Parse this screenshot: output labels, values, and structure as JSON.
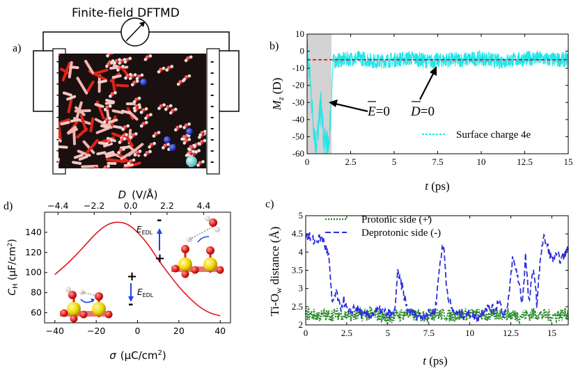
{
  "panel_labels": {
    "a": "a)",
    "b": "b)",
    "c": "c)",
    "d": "d)"
  },
  "panel_a": {
    "title": "Finite-field DFTMD",
    "left_plate_sign": "+",
    "right_plate_sign": "-",
    "colors": {
      "plate": "#ffffff",
      "wire": "#000000",
      "slab_bg": "#1a1010",
      "ti": "#f4b6b0",
      "o": "#e2231a",
      "h": "#f0f0f0",
      "n": "#1f2fd0",
      "ion": "#7fd3d6"
    }
  },
  "panel_b": {
    "annotation_e": "E=0",
    "annotation_d": "D=0",
    "annotation_e_symbol": "E",
    "annotation_d_symbol": "D",
    "annotation_eq": "=0"
  },
  "panel_d": {
    "e_edl_label": "E",
    "e_edl_sub": "EDL",
    "plus": "+",
    "minus": "-"
  },
  "chart_data": [
    {
      "id": "b",
      "type": "line",
      "xlabel": "t (ps)",
      "ylabel": "M_z (D)",
      "ylabel_main": "M",
      "ylabel_sub": "z",
      "ylabel_unit": " (D)",
      "xlim": [
        0,
        15
      ],
      "ylim": [
        -60,
        10
      ],
      "xticks": [
        0,
        2.5,
        5,
        7.5,
        10,
        12.5,
        15
      ],
      "xtick_labels": [
        "0",
        "2.5",
        "5",
        "7.5",
        "10",
        "12.5",
        "15"
      ],
      "yticks": [
        10,
        0,
        -10,
        -20,
        -30,
        -40,
        -50,
        -60
      ],
      "ytick_labels": [
        "10",
        "0",
        "-10",
        "-20",
        "-30",
        "-40",
        "-50",
        "-60"
      ],
      "shaded_region": [
        0,
        1.4
      ],
      "reference_line": -5,
      "legend": "Surface charge 4e",
      "colors": {
        "series": "#22e5e8",
        "reference": "#e0141c",
        "shade": "#d3d3d3"
      },
      "series": [
        {
          "name": "Surface charge 4e",
          "x": [
            0,
            0.1,
            0.2,
            0.3,
            0.4,
            0.5,
            0.6,
            0.7,
            0.8,
            0.9,
            1.0,
            1.1,
            1.2,
            1.3,
            1.4,
            1.5,
            2,
            3,
            4,
            5,
            6,
            7,
            8,
            9,
            10,
            11,
            12,
            13,
            14,
            15
          ],
          "y": [
            5,
            -10,
            -20,
            -35,
            -45,
            -55,
            -50,
            -40,
            -30,
            -45,
            -55,
            -50,
            -58,
            -45,
            -25,
            -6,
            -5,
            -4,
            -6,
            -5,
            -4,
            -6,
            -5,
            -5,
            -4,
            -6,
            -5,
            -4,
            -5,
            -5
          ]
        }
      ]
    },
    {
      "id": "c",
      "type": "line",
      "xlabel": "t (ps)",
      "ylabel": "Ti-O_w distance (Å)",
      "ylabel_main": "Ti-O",
      "ylabel_sub": "w",
      "ylabel_unit": " distance (Å)",
      "xlim": [
        0,
        16
      ],
      "ylim": [
        2,
        5
      ],
      "xticks": [
        0,
        2.5,
        5,
        7.5,
        10,
        12.5,
        15
      ],
      "xtick_labels": [
        "0",
        "2.5",
        "5",
        "7.5",
        "10",
        "12.5",
        "15"
      ],
      "yticks": [
        2,
        2.5,
        3,
        3.5,
        4,
        4.5,
        5
      ],
      "ytick_labels": [
        "2",
        "2.5",
        "3",
        "3.5",
        "4",
        "4.5",
        "5"
      ],
      "colors": {
        "protonic": "#2a8a2a",
        "deprotonic": "#2b2be0"
      },
      "series": [
        {
          "name": "Protonic side (+)",
          "style": "dotted",
          "x": [
            0,
            1,
            2,
            3,
            4,
            5,
            6,
            7,
            8,
            9,
            10,
            11,
            12,
            13,
            14,
            15,
            16
          ],
          "y": [
            2.3,
            2.25,
            2.3,
            2.25,
            2.3,
            2.2,
            2.3,
            2.25,
            2.3,
            2.25,
            2.3,
            2.25,
            2.3,
            2.25,
            2.3,
            2.25,
            2.3
          ]
        },
        {
          "name": "Deprotonic side (-)",
          "style": "dashed",
          "x": [
            0,
            0.5,
            1.0,
            1.4,
            1.6,
            1.9,
            2.1,
            2.3,
            2.6,
            3.0,
            3.5,
            4.0,
            4.5,
            5.0,
            5.4,
            5.6,
            5.9,
            6.2,
            6.6,
            7.0,
            7.5,
            7.9,
            8.2,
            8.4,
            8.6,
            8.9,
            9.3,
            10.0,
            10.5,
            11.0,
            11.5,
            11.8,
            12.0,
            12.3,
            12.6,
            12.9,
            13.2,
            13.4,
            13.6,
            13.9,
            14.1,
            14.3,
            14.5,
            14.7,
            15.0,
            15.3,
            15.6,
            16.0
          ],
          "y": [
            4.5,
            4.3,
            4.4,
            3.9,
            2.6,
            2.9,
            2.4,
            2.7,
            2.3,
            2.5,
            2.25,
            2.3,
            2.4,
            2.3,
            2.3,
            3.4,
            3.0,
            2.4,
            2.3,
            2.25,
            2.3,
            2.4,
            3.8,
            4.2,
            3.0,
            2.4,
            2.3,
            2.3,
            2.2,
            2.5,
            2.4,
            2.7,
            2.3,
            2.4,
            3.8,
            3.4,
            2.6,
            3.9,
            2.6,
            3.6,
            2.5,
            3.9,
            4.4,
            4.2,
            3.8,
            3.9,
            3.8,
            4.1
          ]
        }
      ]
    },
    {
      "id": "d",
      "type": "line",
      "xlabel": "σ (μC/cm²)",
      "xlabel_main": "σ",
      "xlabel_unit": "(μC/cm",
      "ylabel": "C_H (μF/cm²)",
      "top_axis_label": "D (V/Å)",
      "top_axis_label_main": "D",
      "top_axis_label_unit": "(V/Å)",
      "xlim": [
        -45,
        45
      ],
      "ylim": [
        50,
        160
      ],
      "xticks": [
        -40,
        -20,
        0,
        20,
        40
      ],
      "xtick_labels": [
        "−40",
        "−20",
        "0",
        "20",
        "40"
      ],
      "yticks": [
        60,
        80,
        100,
        120,
        140
      ],
      "ytick_labels": [
        "60",
        "80",
        "100",
        "120",
        "140"
      ],
      "top_ticks": [
        -4.4,
        -2.2,
        0.0,
        2.2,
        4.4
      ],
      "top_tick_labels": [
        "−4.4",
        "−2.2",
        "0.0",
        "2.2",
        "4.4"
      ],
      "top_tick_positions_sigma": [
        -38.5,
        -21.0,
        -3.3,
        14.3,
        32.0
      ],
      "colors": {
        "curve": "#e0141c"
      },
      "series": [
        {
          "name": "C_H",
          "x": [
            -40,
            -35,
            -30,
            -25,
            -20,
            -15,
            -10,
            -5,
            0,
            5,
            10,
            15,
            20,
            25,
            30,
            35,
            40
          ],
          "y": [
            98,
            107,
            117,
            128,
            139,
            147,
            150,
            148,
            140,
            128,
            113,
            99,
            86,
            75,
            66,
            60,
            57
          ]
        }
      ]
    }
  ]
}
